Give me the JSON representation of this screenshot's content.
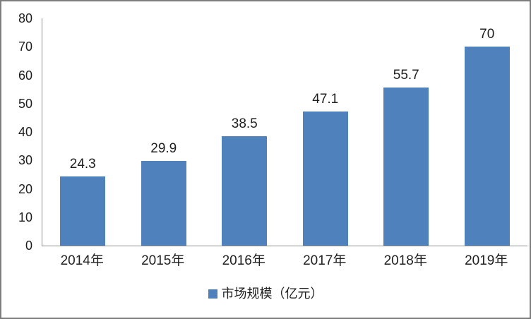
{
  "chart_data": {
    "type": "bar",
    "categories": [
      "2014年",
      "2015年",
      "2016年",
      "2017年",
      "2018年",
      "2019年"
    ],
    "values": [
      24.3,
      29.9,
      38.5,
      47.1,
      55.7,
      70
    ],
    "value_labels": [
      "24.3",
      "29.9",
      "38.5",
      "47.1",
      "55.7",
      "70"
    ],
    "title": "",
    "xlabel": "",
    "ylabel": "",
    "ylim": [
      0,
      80
    ],
    "yticks": [
      0,
      10,
      20,
      30,
      40,
      50,
      60,
      70,
      80
    ],
    "grid": false,
    "legend": {
      "label": "市场规模（亿元）",
      "position": "bottom-center",
      "marker": "square-icon"
    },
    "colors": {
      "bar": "#4f81bd",
      "axis": "#909090",
      "text": "#1f1f1f",
      "background": "#ffffff",
      "frame_border": "#7d7d7d"
    }
  }
}
